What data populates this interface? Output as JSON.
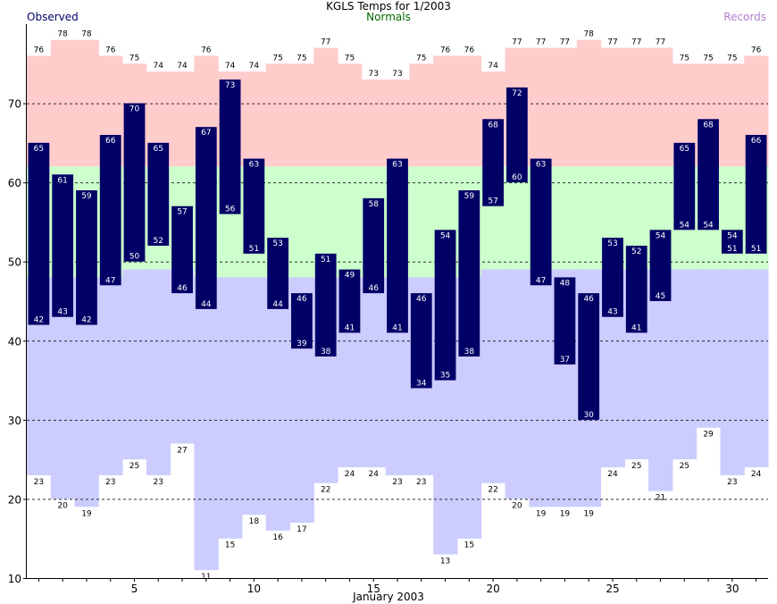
{
  "chart_data": {
    "type": "bar",
    "title": "KGLS Temps for 1/2003",
    "xlabel": "January 2003",
    "legend": {
      "observed": "Observed",
      "normals": "Normals",
      "records": "Records",
      "placement": "top"
    },
    "days": [
      1,
      2,
      3,
      4,
      5,
      6,
      7,
      8,
      9,
      10,
      11,
      12,
      13,
      14,
      15,
      16,
      17,
      18,
      19,
      20,
      21,
      22,
      23,
      24,
      25,
      26,
      27,
      28,
      29,
      30,
      31
    ],
    "x_ticks": [
      5,
      10,
      15,
      20,
      25,
      30
    ],
    "ylim": [
      10,
      80
    ],
    "y_ticks": [
      10,
      20,
      30,
      40,
      50,
      60,
      70
    ],
    "grid": "dashed horizontal",
    "observed_high": [
      65,
      61,
      59,
      66,
      70,
      65,
      57,
      67,
      73,
      63,
      53,
      46,
      51,
      49,
      58,
      63,
      46,
      54,
      59,
      68,
      72,
      63,
      48,
      46,
      53,
      52,
      54,
      65,
      68,
      54,
      66
    ],
    "observed_low": [
      42,
      43,
      42,
      47,
      50,
      52,
      46,
      44,
      56,
      51,
      44,
      39,
      38,
      41,
      46,
      41,
      34,
      35,
      38,
      57,
      60,
      47,
      37,
      30,
      43,
      41,
      45,
      54,
      54,
      51,
      51
    ],
    "record_high": [
      76,
      78,
      78,
      76,
      75,
      74,
      74,
      76,
      74,
      74,
      75,
      75,
      77,
      75,
      73,
      73,
      75,
      76,
      76,
      74,
      77,
      77,
      77,
      78,
      77,
      77,
      77,
      75,
      75,
      75,
      76
    ],
    "record_low": [
      23,
      20,
      19,
      23,
      25,
      23,
      27,
      11,
      15,
      18,
      16,
      17,
      22,
      24,
      24,
      23,
      23,
      13,
      15,
      22,
      20,
      19,
      19,
      19,
      24,
      25,
      21,
      25,
      29,
      23,
      24
    ],
    "normal_high_range": [
      {
        "from_day": 1,
        "to_day": 31,
        "value": 62
      }
    ],
    "normal_low_ranges": [
      {
        "from_day": 1,
        "to_day": 4,
        "value": 48
      },
      {
        "from_day": 5,
        "to_day": 7,
        "value": 49
      },
      {
        "from_day": 8,
        "to_day": 19,
        "value": 48
      },
      {
        "from_day": 20,
        "to_day": 31,
        "value": 49
      }
    ],
    "colors": {
      "observed": "#000066",
      "normal": "#ccffcc",
      "record_high": "#ffcccc",
      "record_low": "#ccccff",
      "grid": "#000000",
      "normals_legend": "#006600",
      "records_legend": "#b07fd0"
    }
  }
}
